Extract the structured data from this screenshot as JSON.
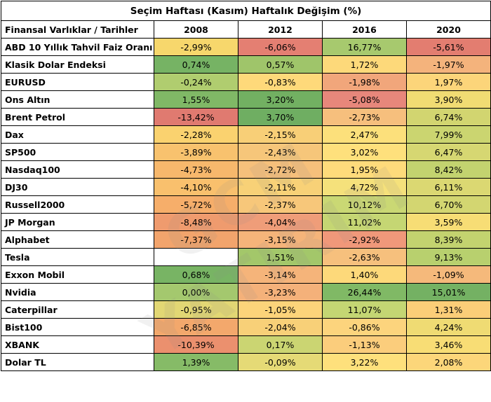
{
  "title": "Seçim Haftası (Kasım) Haftalık Değişim (%)",
  "header": {
    "first": "Finansal Varlıklar / Tarihler",
    "years": [
      "2008",
      "2012",
      "2016",
      "2020"
    ]
  },
  "rows": [
    {
      "label": "ABD 10 Yıllık Tahvil Faiz Oranı",
      "values": [
        "-2,99%",
        "-6,06%",
        "16,77%",
        "-5,61%"
      ],
      "colors": [
        "#f7d76c",
        "#e47f72",
        "#a7c96e",
        "#e37d70"
      ]
    },
    {
      "label": "Klasik Dolar Endeksi",
      "values": [
        "0,74%",
        "0,57%",
        "1,72%",
        "-1,97%"
      ],
      "colors": [
        "#76b364",
        "#9fc56a",
        "#fdd97a",
        "#f4b37c"
      ]
    },
    {
      "label": "EURUSD",
      "values": [
        "-0,24%",
        "-0,83%",
        "-1,98%",
        "1,97%"
      ],
      "colors": [
        "#b0cd6f",
        "#fed97a",
        "#f1a67b",
        "#fcd57a"
      ]
    },
    {
      "label": "Ons Altın",
      "values": [
        "1,55%",
        "3,20%",
        "-5,08%",
        "3,90%"
      ],
      "colors": [
        "#80b866",
        "#72b062",
        "#e7877b",
        "#f1dc73"
      ]
    },
    {
      "label": "Brent Petrol",
      "values": [
        "-13,42%",
        "3,70%",
        "-2,73%",
        "6,74%"
      ],
      "colors": [
        "#e07a70",
        "#6fae62",
        "#f6bf7d",
        "#d2d570"
      ]
    },
    {
      "label": "Dax",
      "values": [
        "-2,28%",
        "-2,15%",
        "2,47%",
        "7,99%"
      ],
      "colors": [
        "#fad26f",
        "#f8cf77",
        "#fce07b",
        "#cbd570"
      ]
    },
    {
      "label": "SP500",
      "values": [
        "-3,89%",
        "-2,43%",
        "3,02%",
        "6,47%"
      ],
      "colors": [
        "#f8c26e",
        "#f6c67a",
        "#fee07c",
        "#d6d772"
      ]
    },
    {
      "label": "Nasdaq100",
      "values": [
        "-4,73%",
        "-2,72%",
        "1,95%",
        "8,42%"
      ],
      "colors": [
        "#f7b86c",
        "#f6c07b",
        "#fedb7b",
        "#c3d36f"
      ]
    },
    {
      "label": "DJ30",
      "values": [
        "-4,10%",
        "-2,11%",
        "4,72%",
        "6,11%"
      ],
      "colors": [
        "#f9c06d",
        "#f8d177",
        "#f5e17b",
        "#dbd872"
      ]
    },
    {
      "label": "Russell2000",
      "values": [
        "-5,72%",
        "-2,37%",
        "10,12%",
        "6,70%"
      ],
      "colors": [
        "#f6ae6a",
        "#f7c77a",
        "#cad874",
        "#d3d671"
      ]
    },
    {
      "label": "JP Morgan",
      "values": [
        "-8,48%",
        "-4,04%",
        "11,02%",
        "3,59%"
      ],
      "colors": [
        "#ef9b6e",
        "#ef9d79",
        "#c5d673",
        "#f7dd75"
      ]
    },
    {
      "label": "Alphabet",
      "values": [
        "-7,37%",
        "-3,15%",
        "-2,92%",
        "8,39%"
      ],
      "colors": [
        "#f2a46c",
        "#f5b47a",
        "#f0987a",
        "#c3d36f"
      ]
    },
    {
      "label": "Tesla",
      "values": [
        "",
        "1,51%",
        "-2,63%",
        "9,13%"
      ],
      "colors": [
        "#ffffff",
        "#a3c76a",
        "#f6c07d",
        "#b8d06e"
      ]
    },
    {
      "label": "Exxon Mobil",
      "values": [
        "0,68%",
        "-3,14%",
        "1,40%",
        "-1,09%"
      ],
      "colors": [
        "#78b464",
        "#f5b47a",
        "#fdd97a",
        "#f5b97b"
      ]
    },
    {
      "label": "Nvidia",
      "values": [
        "0,00%",
        "-3,23%",
        "26,44%",
        "15,01%"
      ],
      "colors": [
        "#a4c86e",
        "#f4b17a",
        "#80b965",
        "#74b163"
      ]
    },
    {
      "label": "Caterpillar",
      "values": [
        "-0,95%",
        "-1,05%",
        "11,07%",
        "1,31%"
      ],
      "colors": [
        "#e2d774",
        "#fcd47a",
        "#c4d673",
        "#fbce78"
      ]
    },
    {
      "label": "Bist100",
      "values": [
        "-6,85%",
        "-2,04%",
        "-0,86%",
        "4,24%"
      ],
      "colors": [
        "#f3a86c",
        "#f8d078",
        "#fcd47d",
        "#efdb73"
      ]
    },
    {
      "label": "XBANK",
      "values": [
        "-10,39%",
        "0,17%",
        "-1,13%",
        "3,46%"
      ],
      "colors": [
        "#eb906e",
        "#cbd572",
        "#fbcd7c",
        "#f8dd75"
      ]
    },
    {
      "label": "Dolar TL",
      "values": [
        "1,39%",
        "-0,09%",
        "3,22%",
        "2,08%"
      ],
      "colors": [
        "#86bb67",
        "#e5da76",
        "#fee07c",
        "#fcd67a"
      ]
    }
  ],
  "watermark": "GCM YATIRIM"
}
